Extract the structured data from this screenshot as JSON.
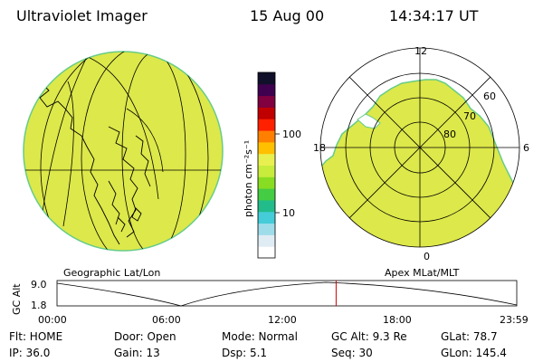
{
  "header": {
    "instrument": "Ultraviolet Imager",
    "date": "15 Aug 00",
    "time": "14:34:17 UT"
  },
  "left_panel": {
    "caption": "Geographic Lat/Lon"
  },
  "right_panel": {
    "caption": "Apex MLat/MLT",
    "mlt_labels": [
      "12",
      "18",
      "6",
      "0"
    ],
    "lat_labels": [
      "60",
      "70",
      "80"
    ]
  },
  "colorbar": {
    "unit_label": "photon cm⁻²s⁻¹",
    "ticks": [
      "100",
      "10"
    ],
    "colors": [
      "#ffffff",
      "#e0ecf4",
      "#9fdce9",
      "#44ccd8",
      "#22bb8a",
      "#44cc44",
      "#88dd22",
      "#c8ec3c",
      "#e8f050",
      "#ffc000",
      "#ff8000",
      "#ff2000",
      "#c00000",
      "#800040",
      "#400050",
      "#10102a"
    ]
  },
  "alt_plot": {
    "ylabel": "GC Alt",
    "y_ticks": [
      "9.0",
      "1.8"
    ],
    "x_ticks": [
      "00:00",
      "06:00",
      "12:00",
      "18:00",
      "23:59"
    ],
    "current_time_hours": 14.57
  },
  "status": {
    "flt": "Flt: HOME",
    "door": "Door: Open",
    "mode": "Mode: Normal",
    "gc_alt": "GC Alt: 9.3 Re",
    "glat": "GLat:  78.7",
    "ip": "IP: 36.0",
    "gain": "Gain: 13",
    "dsp": "Dsp:    5.1",
    "seq": "Seq: 30",
    "glon": "GLon: 145.4"
  },
  "colors": {
    "image_fill": "#dde84a",
    "image_edge": "#66cc88",
    "marker": "#cc0000"
  }
}
